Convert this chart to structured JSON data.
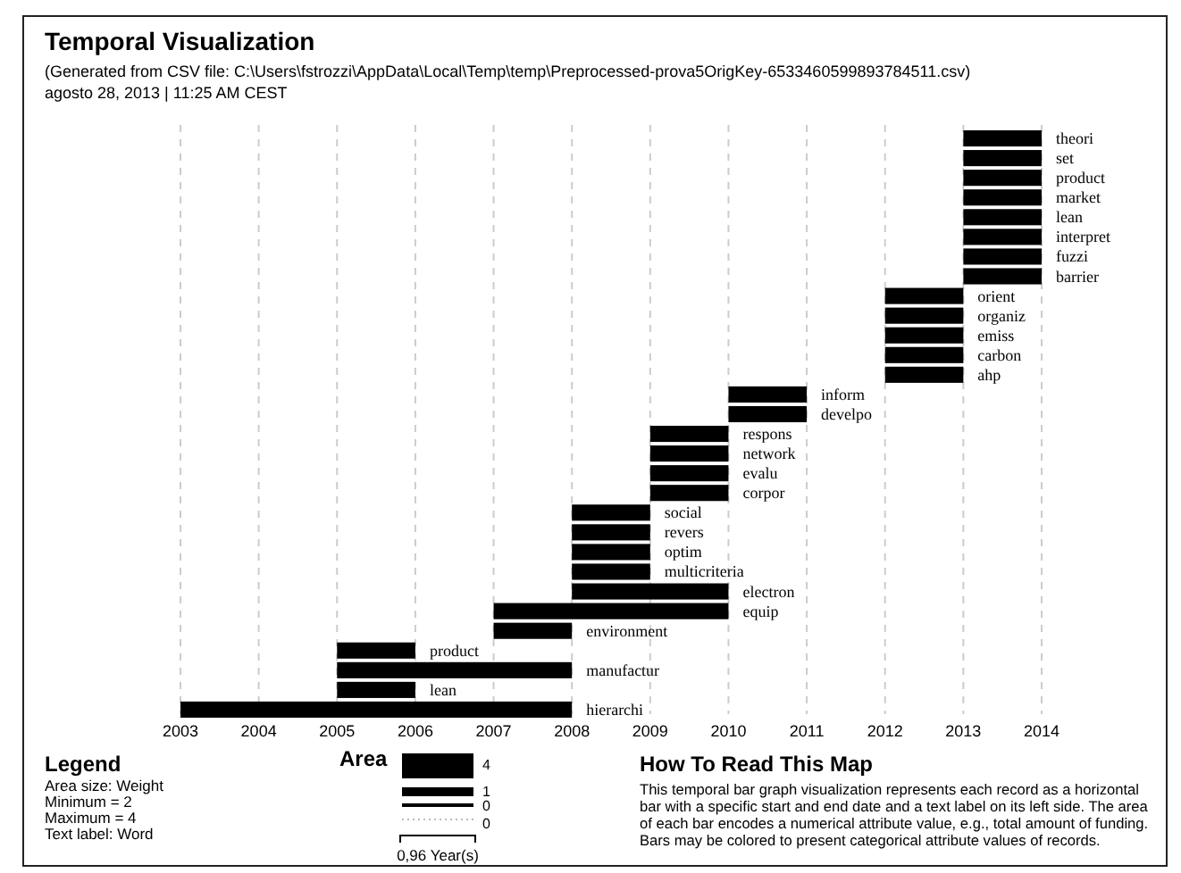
{
  "chart_data": {
    "type": "bar",
    "orientation": "horizontal",
    "title": "Temporal Visualization",
    "subtitle": "(Generated from CSV file: C:\\Users\\fstrozzi\\AppData\\Local\\Temp\\temp\\Preprocessed-prova5OrigKey-6533460599893784511.csv)",
    "categories": [
      "theori",
      "set",
      "product",
      "market",
      "lean",
      "interpret",
      "fuzzi",
      "barrier",
      "orient",
      "organiz",
      "emiss",
      "carbon",
      "ahp",
      "inform",
      "develpo",
      "respons",
      "network",
      "evalu",
      "corpor",
      "social",
      "revers",
      "optim",
      "multicriteria",
      "electron",
      "equip",
      "environment",
      "product",
      "manufactur",
      "lean",
      "hierarchi"
    ],
    "base": [
      2013,
      2013,
      2013,
      2013,
      2013,
      2013,
      2013,
      2013,
      2012,
      2012,
      2012,
      2012,
      2012,
      2010,
      2010,
      2009,
      2009,
      2009,
      2009,
      2008,
      2008,
      2008,
      2008,
      2008,
      2007,
      2007,
      2005,
      2005,
      2005,
      2003
    ],
    "values": [
      1,
      1,
      1,
      1,
      1,
      1,
      1,
      1,
      1,
      1,
      1,
      1,
      1,
      1,
      1,
      1,
      1,
      1,
      1,
      1,
      1,
      1,
      1,
      2,
      3,
      1,
      1,
      3,
      1,
      5
    ],
    "color": "#000000",
    "xlim": [
      2003,
      2014
    ],
    "xticks": [
      2003,
      2004,
      2005,
      2006,
      2007,
      2008,
      2009,
      2010,
      2011,
      2012,
      2013,
      2014
    ],
    "grid": "x",
    "annotations": [
      "agosto 28, 2013 | 11:25 AM CEST",
      "Legend",
      "Area size: Weight",
      "Minimum = 2",
      "Maximum = 4",
      "Text label: Word",
      "Area",
      "4",
      "1",
      "0",
      "0",
      "0,96 Year(s)",
      "How To Read This Map",
      "This temporal bar graph visualization represents each record as a horizontal bar with a specific start and end date and a text label on its left side. The area of each bar encodes a numerical attribute value, e.g., total amount of funding. Bars may be colored to present categorical attribute values of records."
    ]
  }
}
